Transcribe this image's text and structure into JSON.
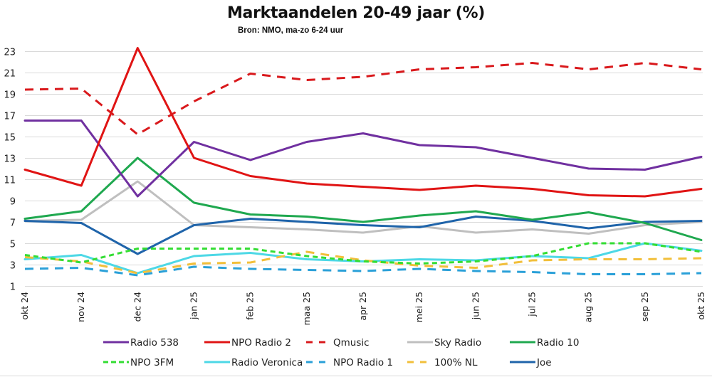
{
  "chart_data": {
    "type": "line",
    "title": "Marktaandelen 20-49 jaar (%)",
    "subtitle": "Bron: NMO, ma-zo 6-24 uur",
    "xlabel": "",
    "ylabel": "",
    "ylim": [
      1,
      23
    ],
    "yticks": [
      1,
      3,
      5,
      7,
      9,
      11,
      13,
      15,
      17,
      19,
      21,
      23
    ],
    "grid": true,
    "legend_position": "bottom",
    "categories": [
      "okt 24",
      "nov 24",
      "dec 24",
      "jan 25",
      "feb 25",
      "maa 25",
      "apr 25",
      "mei 25",
      "jun 25",
      "jul 25",
      "aug 25",
      "sep 25",
      "okt 25"
    ],
    "series": [
      {
        "name": "Radio 538",
        "color": "#7030A0",
        "style": "solid",
        "values": [
          16.5,
          16.5,
          9.4,
          14.5,
          12.8,
          14.5,
          15.3,
          14.2,
          14.0,
          13.0,
          12.0,
          11.9,
          13.1
        ]
      },
      {
        "name": "NPO Radio 2",
        "color": "#E01414",
        "style": "solid",
        "values": [
          11.9,
          10.4,
          23.3,
          13.0,
          11.3,
          10.6,
          10.3,
          10.0,
          10.4,
          10.1,
          9.5,
          9.4,
          10.1
        ]
      },
      {
        "name": "Qmusic",
        "color": "#D9191C",
        "style": "dashed",
        "values": [
          19.4,
          19.5,
          15.2,
          18.3,
          20.9,
          20.3,
          20.6,
          21.3,
          21.5,
          21.9,
          21.3,
          21.9,
          21.3
        ]
      },
      {
        "name": "Sky Radio",
        "color": "#BFBFBF",
        "style": "solid",
        "values": [
          7.1,
          7.2,
          10.8,
          6.7,
          6.5,
          6.3,
          6.0,
          6.6,
          6.0,
          6.3,
          5.9,
          6.7,
          7.0
        ]
      },
      {
        "name": "Radio 10",
        "color": "#1FA84F",
        "style": "solid",
        "values": [
          7.3,
          8.0,
          13.0,
          8.8,
          7.7,
          7.5,
          7.0,
          7.6,
          8.0,
          7.2,
          7.9,
          6.9,
          5.3
        ]
      },
      {
        "name": "NPO 3FM",
        "color": "#33DD33",
        "style": "dotted",
        "values": [
          3.9,
          3.2,
          4.5,
          4.5,
          4.5,
          3.8,
          3.3,
          3.1,
          3.3,
          3.8,
          5.0,
          5.0,
          4.2
        ]
      },
      {
        "name": "Radio Veronica",
        "color": "#4DD8E6",
        "style": "solid",
        "values": [
          3.5,
          3.9,
          2.2,
          3.8,
          4.1,
          3.5,
          3.3,
          3.5,
          3.4,
          3.8,
          3.6,
          5.0,
          4.3
        ]
      },
      {
        "name": "NPO Radio 1",
        "color": "#2AA0D8",
        "style": "dashed",
        "values": [
          2.6,
          2.7,
          2.0,
          2.8,
          2.6,
          2.5,
          2.4,
          2.6,
          2.4,
          2.3,
          2.1,
          2.1,
          2.2
        ]
      },
      {
        "name": "100% NL",
        "color": "#F2BF3A",
        "style": "dashed",
        "values": [
          3.7,
          3.3,
          2.2,
          3.1,
          3.2,
          4.2,
          3.4,
          2.9,
          2.7,
          3.4,
          3.5,
          3.5,
          3.6
        ]
      },
      {
        "name": "Joe",
        "color": "#1F64AA",
        "style": "solid",
        "values": [
          7.1,
          6.9,
          4.0,
          6.7,
          7.3,
          7.0,
          6.7,
          6.5,
          7.5,
          7.1,
          6.4,
          7.0,
          7.1
        ]
      }
    ]
  }
}
